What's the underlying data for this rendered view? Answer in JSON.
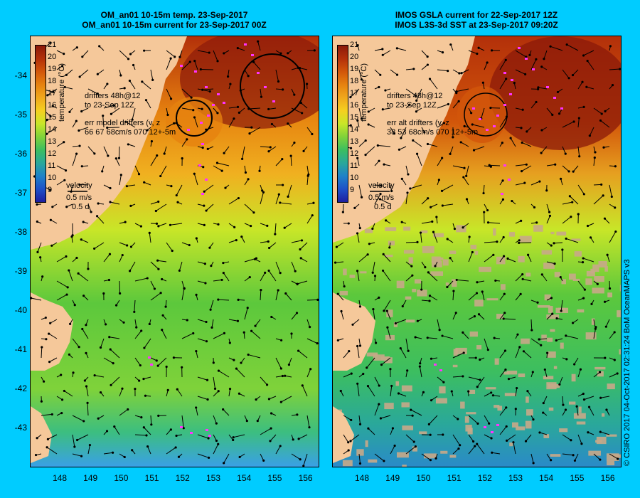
{
  "titles": {
    "left_line1": "OM_an01 10-15m temp. 23-Sep-2017",
    "left_line2": "OM_an01 10-15m current for 23-Sep-2017 00Z",
    "right_line1": "IMOS GSLA current for 22-Sep-2017 12Z",
    "right_line2": "IMOS L3S-3d SST at 23-Sep-2017 09:20Z"
  },
  "colorbar": {
    "labels": [
      "21",
      "20",
      "19",
      "18",
      "17",
      "16",
      "15",
      "14",
      "13",
      "12",
      "11",
      "10",
      "9"
    ],
    "title": "temperature (°C)",
    "colors": [
      "#8b1a0a",
      "#b3300a",
      "#d2560a",
      "#e6820f",
      "#f0a81c",
      "#f5d020",
      "#c8e628",
      "#7fd23a",
      "#3cbe60",
      "#2aa89a",
      "#1e82c8",
      "#1e50c8",
      "#1e1ea0"
    ]
  },
  "left_panel": {
    "drifters_line1": "drifters 48h@12",
    "drifters_line2": "to 23-Sep 12Z",
    "err_line1": "err model drifters (v, z",
    "err_line2": "66 67 68cm/s 070 12+-5m",
    "velocity_label": "velocity",
    "velocity_scale": "0.5 m/s",
    "velocity_time": "0.5 d"
  },
  "right_panel": {
    "drifters_line1": "drifters 48h@12",
    "drifters_line2": "to 23-Sep 12Z",
    "err_line1": "err alt drifters (v, z",
    "err_line2": "38 53 68cm/s 070 12+-5m",
    "velocity_label": "velocity",
    "velocity_scale": "0.5 m/s",
    "velocity_time": "0.5 d"
  },
  "axes": {
    "y_labels": [
      "-34",
      "-35",
      "-36",
      "-37",
      "-38",
      "-39",
      "-40",
      "-41",
      "-42",
      "-43"
    ],
    "x_labels": [
      "148",
      "149",
      "150",
      "151",
      "152",
      "153",
      "154",
      "155",
      "156"
    ]
  },
  "credit": "© CSIRO 2017   04-Oct-2017 02:31:24 BoM OceanMAPS v3",
  "colors": {
    "background": "#00ccff",
    "land": "#f5c89a",
    "drifter": "#ff33ff"
  }
}
